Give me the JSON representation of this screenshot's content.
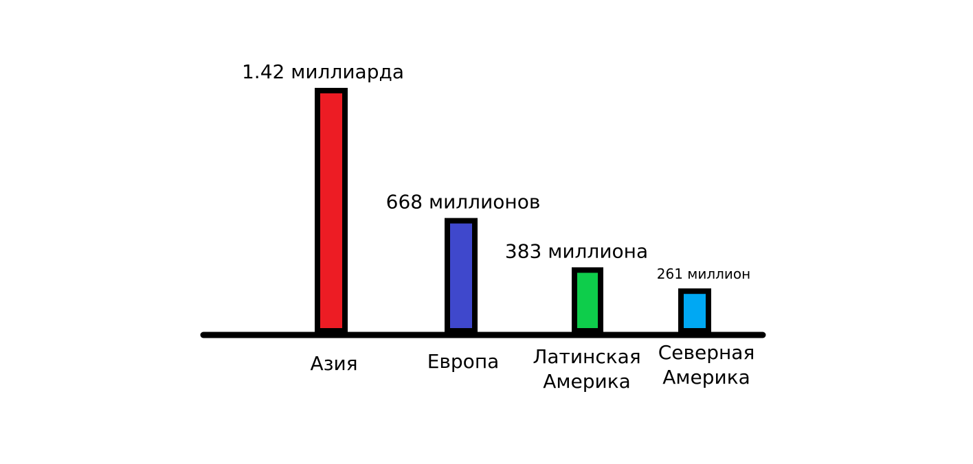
{
  "chart_data": {
    "type": "bar",
    "categories": [
      "Азия",
      "Европа",
      "Латинская Америка",
      "Северная Америка"
    ],
    "category_lines": [
      [
        "Азия"
      ],
      [
        "Европа"
      ],
      [
        "Латинская",
        "Америка"
      ],
      [
        "Северная",
        "Америка"
      ]
    ],
    "values": [
      1420,
      668,
      383,
      261
    ],
    "value_unit": "millions",
    "data_labels": [
      "1.42 миллиарда",
      "668 миллионов",
      "383 миллиона",
      "261 миллион"
    ],
    "colors": [
      "#ED1C24",
      "#3F48CC",
      "#0ECD4B",
      "#00A8F3"
    ],
    "outline_color": "#000000",
    "title": "",
    "xlabel": "",
    "ylabel": "",
    "grid": false,
    "legend": "none"
  }
}
